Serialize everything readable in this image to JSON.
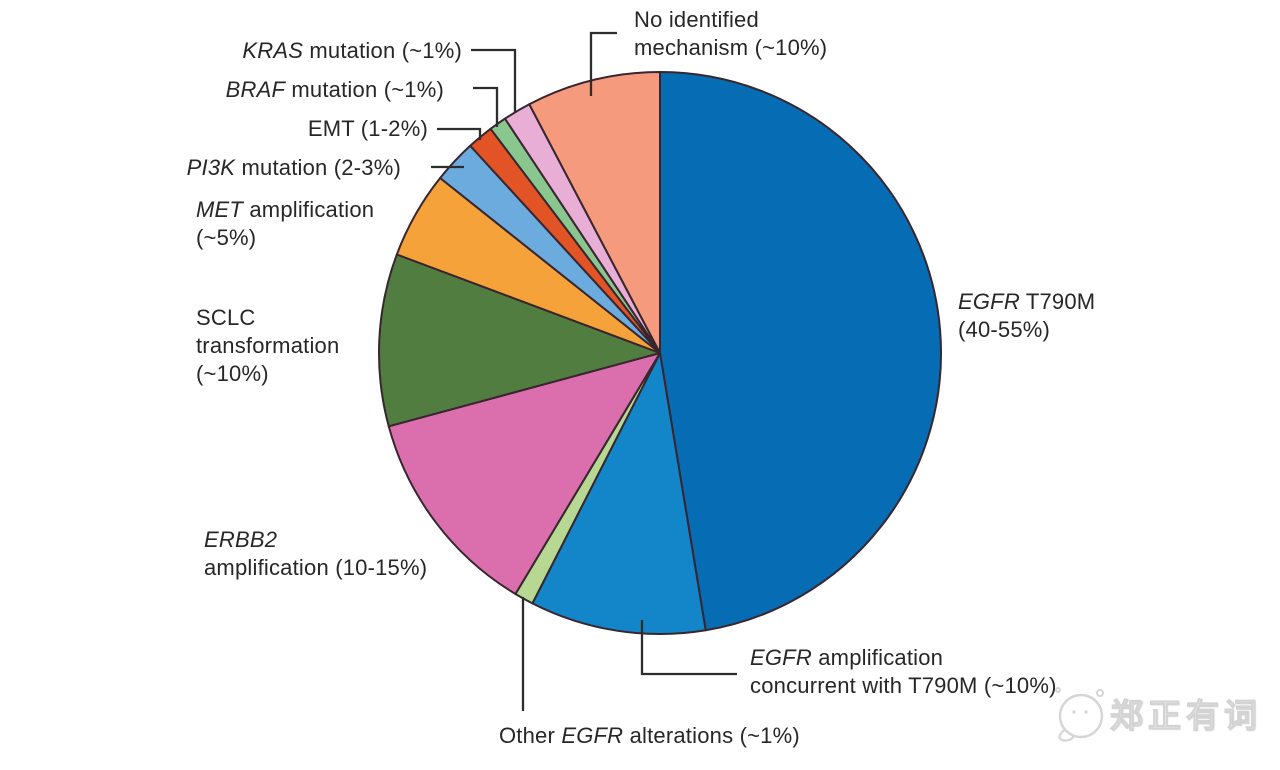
{
  "watermark": {
    "text": "郑正有词",
    "logo": "wechat-face-logo"
  },
  "chart_data": {
    "type": "pie",
    "title": "",
    "start_angle": "top (12 o'clock)",
    "direction": "clockwise",
    "legend_position": "none (direct slice labels with leader lines)",
    "slices": [
      {
        "id": "egfr_t790m",
        "name": "EGFR T790M",
        "reported_pct": "40-55%",
        "value": 47.4,
        "color": "#066cb3",
        "lines": [
          [
            {
              "t": "EGFR",
              "i": 1
            },
            {
              "t": " T790M"
            }
          ],
          [
            {
              "t": "(40-55%)"
            }
          ]
        ]
      },
      {
        "id": "egfr_amp",
        "name": "EGFR amplification concurrent with T790M",
        "reported_pct": "~10%",
        "value": 10.1,
        "color": "#1286c8",
        "lines": [
          [
            {
              "t": "EGFR",
              "i": 1
            },
            {
              "t": " amplification"
            }
          ],
          [
            {
              "t": "concurrent with T790M (~10%)"
            }
          ]
        ]
      },
      {
        "id": "other_egfr",
        "name": "Other EGFR alterations",
        "reported_pct": "~1%",
        "value": 1.1,
        "color": "#b6d893",
        "lines": [
          [
            {
              "t": "Other "
            },
            {
              "t": "EGFR",
              "i": 1
            },
            {
              "t": " alterations (~1%)"
            }
          ]
        ]
      },
      {
        "id": "erbb2",
        "name": "ERBB2 amplification",
        "reported_pct": "10-15%",
        "value": 12.2,
        "color": "#db6fad",
        "lines": [
          [
            {
              "t": "ERBB2",
              "i": 1
            }
          ],
          [
            {
              "t": "amplification (10-15%)"
            }
          ]
        ]
      },
      {
        "id": "sclc",
        "name": "SCLC transformation",
        "reported_pct": "~10%",
        "value": 9.9,
        "color": "#527d40",
        "lines": [
          [
            {
              "t": "SCLC"
            }
          ],
          [
            {
              "t": "transformation"
            }
          ],
          [
            {
              "t": "(~10%)"
            }
          ]
        ]
      },
      {
        "id": "met",
        "name": "MET amplification",
        "reported_pct": "~5%",
        "value": 5.0,
        "color": "#f5a23b",
        "lines": [
          [
            {
              "t": "MET",
              "i": 1
            },
            {
              "t": " amplification"
            }
          ],
          [
            {
              "t": "(~5%)"
            }
          ]
        ]
      },
      {
        "id": "pi3k",
        "name": "PI3K mutation",
        "reported_pct": "2-3%",
        "value": 2.5,
        "color": "#6cabde",
        "lines": [
          [
            {
              "t": "PI3K",
              "i": 1
            },
            {
              "t": " mutation (2-3%)"
            }
          ]
        ]
      },
      {
        "id": "emt",
        "name": "EMT",
        "reported_pct": "1-2%",
        "value": 1.5,
        "color": "#e25426",
        "lines": [
          [
            {
              "t": "EMT (1-2%)"
            }
          ]
        ]
      },
      {
        "id": "braf",
        "name": "BRAF mutation",
        "reported_pct": "~1%",
        "value": 1.0,
        "color": "#8ac78e",
        "lines": [
          [
            {
              "t": "BRAF",
              "i": 1
            },
            {
              "t": " mutation (~1%)"
            }
          ]
        ]
      },
      {
        "id": "kras",
        "name": "KRAS mutation",
        "reported_pct": "~1%",
        "value": 1.6,
        "color": "#e9aed6",
        "lines": [
          [
            {
              "t": "KRAS",
              "i": 1
            },
            {
              "t": " mutation (~1%)"
            }
          ]
        ]
      },
      {
        "id": "no_mech",
        "name": "No identified mechanism",
        "reported_pct": "~10%",
        "value": 7.7,
        "color": "#f69a7e",
        "lines": [
          [
            {
              "t": "No identified"
            }
          ],
          [
            {
              "t": "mechanism (~10%)"
            }
          ]
        ]
      }
    ]
  }
}
